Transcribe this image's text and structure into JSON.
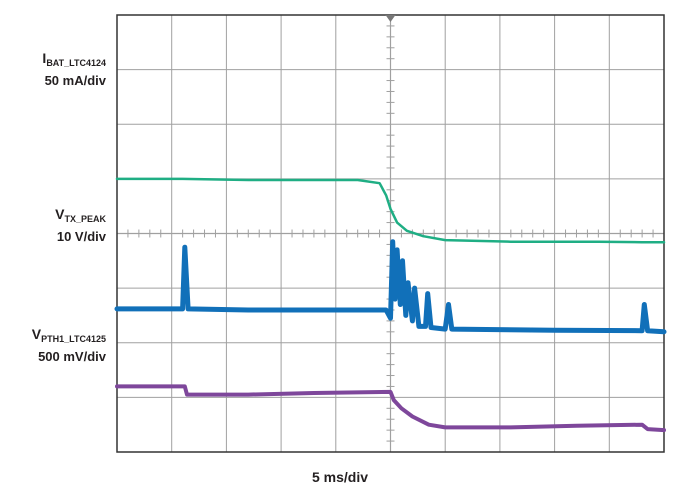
{
  "chart_data": {
    "type": "line",
    "title": "",
    "xlabel": "5 ms/div",
    "ylabel": "",
    "grid": true,
    "x_unit": "ms",
    "x_per_div": 5,
    "divisions": {
      "x": 10,
      "y": 8
    },
    "xlim": [
      0,
      50
    ],
    "trigger_x": 25,
    "colors": {
      "grid": "#a0a0a0",
      "frame": "#333333"
    },
    "series": [
      {
        "label_main": "I",
        "label_sub": "BAT_LTC4124",
        "scale": "50 mA/div",
        "color": "#1fae84",
        "stroke": 2.5,
        "points": [
          [
            0,
            1.0
          ],
          [
            6,
            1.0
          ],
          [
            12,
            0.98
          ],
          [
            18,
            0.98
          ],
          [
            22,
            0.98
          ],
          [
            24,
            0.92
          ],
          [
            24.6,
            0.7
          ],
          [
            25,
            0.45
          ],
          [
            25.6,
            0.2
          ],
          [
            26.5,
            0.05
          ],
          [
            28,
            -0.05
          ],
          [
            30,
            -0.12
          ],
          [
            36,
            -0.15
          ],
          [
            40,
            -0.15
          ],
          [
            44,
            -0.15
          ],
          [
            48,
            -0.16
          ],
          [
            50,
            -0.16
          ]
        ]
      },
      {
        "label_main": "V",
        "label_sub": "TX_PEAK",
        "scale": "10 V/div",
        "color": "#1170b9",
        "stroke": 5,
        "points": [
          [
            0,
            -1.38
          ],
          [
            6,
            -1.38
          ],
          [
            6.2,
            -0.25
          ],
          [
            6.5,
            -1.38
          ],
          [
            12,
            -1.4
          ],
          [
            18,
            -1.4
          ],
          [
            24.6,
            -1.4
          ],
          [
            25,
            -1.55
          ],
          [
            25.2,
            -0.15
          ],
          [
            25.4,
            -1.2
          ],
          [
            25.6,
            -0.3
          ],
          [
            25.9,
            -1.3
          ],
          [
            26.1,
            -0.5
          ],
          [
            26.4,
            -1.5
          ],
          [
            26.6,
            -0.9
          ],
          [
            27,
            -1.6
          ],
          [
            27.2,
            -1.0
          ],
          [
            27.6,
            -1.7
          ],
          [
            28.2,
            -1.7
          ],
          [
            28.4,
            -1.1
          ],
          [
            28.7,
            -1.72
          ],
          [
            30,
            -1.75
          ],
          [
            30.3,
            -1.3
          ],
          [
            30.6,
            -1.75
          ],
          [
            40,
            -1.77
          ],
          [
            48,
            -1.78
          ],
          [
            48.2,
            -1.3
          ],
          [
            48.5,
            -1.78
          ],
          [
            50,
            -1.8
          ]
        ]
      },
      {
        "label_main": "V",
        "label_sub": "PTH1_LTC4125",
        "scale": "500 mV/div",
        "color": "#7e479b",
        "stroke": 4,
        "points": [
          [
            0,
            -2.8
          ],
          [
            6.2,
            -2.8
          ],
          [
            6.4,
            -2.95
          ],
          [
            12,
            -2.95
          ],
          [
            18,
            -2.92
          ],
          [
            25,
            -2.9
          ],
          [
            25.3,
            -3.05
          ],
          [
            26,
            -3.2
          ],
          [
            27,
            -3.35
          ],
          [
            28.5,
            -3.5
          ],
          [
            30,
            -3.55
          ],
          [
            36,
            -3.55
          ],
          [
            42,
            -3.52
          ],
          [
            48,
            -3.5
          ],
          [
            48.5,
            -3.58
          ],
          [
            50,
            -3.6
          ]
        ]
      }
    ]
  }
}
